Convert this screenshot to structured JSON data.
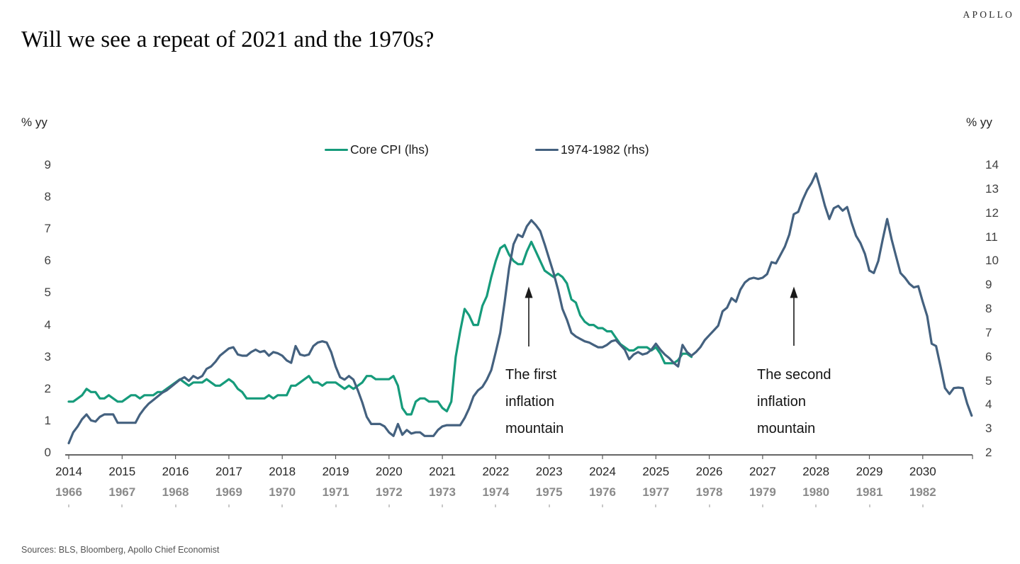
{
  "brand": {
    "logo_text": "APOLLO"
  },
  "header": {
    "title": "Will we see a repeat of 2021 and the 1970s?"
  },
  "source": "Sources: BLS, Bloomberg, Apollo Chief Economist",
  "axes": {
    "left_unit": "% yy",
    "right_unit": "% yy",
    "left_ticks": [
      "0",
      "1",
      "2",
      "3",
      "4",
      "5",
      "6",
      "7",
      "8",
      "9"
    ],
    "right_ticks": [
      "2",
      "3",
      "4",
      "5",
      "6",
      "7",
      "8",
      "9",
      "10",
      "11",
      "12",
      "13",
      "14"
    ],
    "x_primary": [
      "2014",
      "2015",
      "2016",
      "2017",
      "2018",
      "2019",
      "2020",
      "2021",
      "2022",
      "2023",
      "2024",
      "2025",
      "2026",
      "2027",
      "2028",
      "2029",
      "2030"
    ],
    "x_secondary": [
      "1966",
      "1967",
      "1968",
      "1969",
      "1970",
      "1971",
      "1972",
      "1973",
      "1974",
      "1975",
      "1976",
      "1977",
      "1978",
      "1979",
      "1980",
      "1981",
      "1982"
    ]
  },
  "legend": [
    {
      "label": "Core CPI (lhs)",
      "color": "#169B7B"
    },
    {
      "label": "1974-1982 (rhs)",
      "color": "#44617F"
    }
  ],
  "annotations": [
    {
      "lines": [
        "The first",
        "inflation",
        "mountain"
      ]
    },
    {
      "lines": [
        "The second",
        "inflation",
        "mountain"
      ]
    }
  ],
  "chart_data": {
    "type": "line",
    "title": "Will we see a repeat of 2021 and the 1970s?",
    "x_range": [
      2014,
      2031
    ],
    "left_ylim": [
      0,
      9
    ],
    "right_ylim": [
      2,
      14
    ],
    "grid": false,
    "legend_position": "top-center",
    "series": [
      {
        "name": "Core CPI (lhs)",
        "axis": "left",
        "color": "#169B7B",
        "start_year": 2014,
        "step_months": 1,
        "values": [
          1.6,
          1.6,
          1.7,
          1.8,
          2.0,
          1.9,
          1.9,
          1.7,
          1.7,
          1.8,
          1.7,
          1.6,
          1.6,
          1.7,
          1.8,
          1.8,
          1.7,
          1.8,
          1.8,
          1.8,
          1.9,
          1.9,
          2.0,
          2.1,
          2.2,
          2.3,
          2.2,
          2.1,
          2.2,
          2.2,
          2.2,
          2.3,
          2.2,
          2.1,
          2.1,
          2.2,
          2.3,
          2.2,
          2.0,
          1.9,
          1.7,
          1.7,
          1.7,
          1.7,
          1.7,
          1.8,
          1.7,
          1.8,
          1.8,
          1.8,
          2.1,
          2.1,
          2.2,
          2.3,
          2.4,
          2.2,
          2.2,
          2.1,
          2.2,
          2.2,
          2.2,
          2.1,
          2.0,
          2.1,
          2.0,
          2.1,
          2.2,
          2.4,
          2.4,
          2.3,
          2.3,
          2.3,
          2.3,
          2.4,
          2.1,
          1.4,
          1.2,
          1.2,
          1.6,
          1.7,
          1.7,
          1.6,
          1.6,
          1.6,
          1.4,
          1.3,
          1.6,
          3.0,
          3.8,
          4.5,
          4.3,
          4.0,
          4.0,
          4.6,
          4.9,
          5.5,
          6.0,
          6.4,
          6.5,
          6.2,
          6.0,
          5.9,
          5.9,
          6.3,
          6.6,
          6.3,
          6.0,
          5.7,
          5.6,
          5.5,
          5.6,
          5.5,
          5.3,
          4.8,
          4.7,
          4.3,
          4.1,
          4.0,
          4.0,
          3.9,
          3.9,
          3.8,
          3.8,
          3.6,
          3.4,
          3.3,
          3.2,
          3.2,
          3.3,
          3.3,
          3.3,
          3.2,
          3.3,
          3.1,
          2.8,
          2.8,
          2.8,
          2.9,
          3.1,
          3.1,
          3.0
        ]
      },
      {
        "name": "1974-1982 (rhs)",
        "axis": "right",
        "color": "#44617F",
        "start_year": 2014,
        "step_months": 1,
        "values": [
          2.4,
          2.85,
          3.1,
          3.4,
          3.6,
          3.35,
          3.3,
          3.5,
          3.6,
          3.6,
          3.6,
          3.25,
          3.25,
          3.25,
          3.25,
          3.25,
          3.6,
          3.85,
          4.05,
          4.2,
          4.35,
          4.5,
          4.6,
          4.75,
          4.9,
          5.05,
          5.15,
          5.0,
          5.2,
          5.1,
          5.2,
          5.5,
          5.6,
          5.8,
          6.05,
          6.2,
          6.35,
          6.4,
          6.1,
          6.05,
          6.05,
          6.2,
          6.3,
          6.2,
          6.25,
          6.05,
          6.2,
          6.15,
          6.05,
          5.85,
          5.75,
          6.45,
          6.1,
          6.05,
          6.1,
          6.45,
          6.6,
          6.65,
          6.6,
          6.2,
          5.6,
          5.15,
          5.05,
          5.2,
          5.05,
          4.6,
          4.1,
          3.5,
          3.2,
          3.2,
          3.2,
          3.1,
          2.85,
          2.7,
          3.2,
          2.75,
          2.95,
          2.8,
          2.85,
          2.85,
          2.7,
          2.7,
          2.7,
          2.95,
          3.1,
          3.15,
          3.15,
          3.15,
          3.15,
          3.45,
          3.85,
          4.35,
          4.6,
          4.75,
          5.05,
          5.45,
          6.2,
          7.0,
          8.3,
          9.7,
          10.7,
          11.1,
          11.0,
          11.45,
          11.7,
          11.5,
          11.25,
          10.7,
          10.1,
          9.5,
          8.8,
          8.0,
          7.55,
          7.0,
          6.85,
          6.75,
          6.65,
          6.6,
          6.5,
          6.4,
          6.4,
          6.5,
          6.65,
          6.7,
          6.5,
          6.3,
          5.9,
          6.1,
          6.2,
          6.1,
          6.15,
          6.3,
          6.55,
          6.3,
          6.1,
          5.95,
          5.75,
          5.6,
          6.5,
          6.2,
          6.05,
          6.2,
          6.4,
          6.7,
          6.9,
          7.1,
          7.3,
          7.9,
          8.05,
          8.45,
          8.3,
          8.8,
          9.1,
          9.25,
          9.3,
          9.25,
          9.3,
          9.45,
          9.95,
          9.9,
          10.25,
          10.6,
          11.1,
          11.95,
          12.05,
          12.55,
          12.95,
          13.25,
          13.65,
          13.0,
          12.3,
          11.75,
          12.2,
          12.3,
          12.1,
          12.25,
          11.6,
          11.05,
          10.75,
          10.3,
          9.6,
          9.5,
          10.0,
          10.9,
          11.75,
          10.9,
          10.2,
          9.5,
          9.3,
          9.05,
          8.9,
          8.95,
          8.3,
          7.7,
          6.55,
          6.45,
          5.6,
          4.7,
          4.45,
          4.7,
          4.72,
          4.7,
          4.05,
          3.55
        ]
      }
    ]
  }
}
